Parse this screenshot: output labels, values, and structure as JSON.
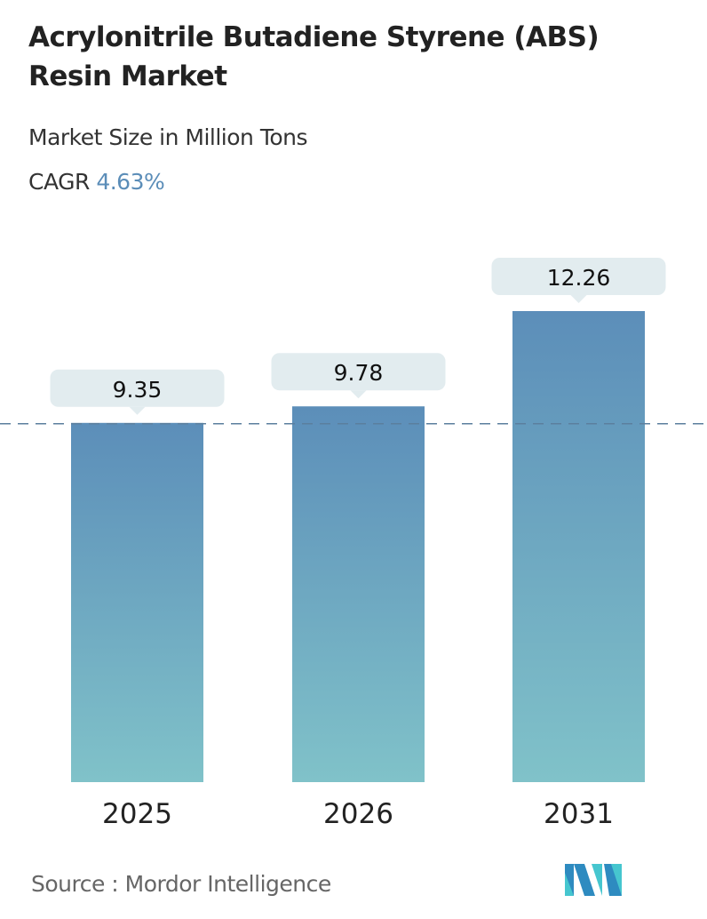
{
  "title": "Acrylonitrile Butadiene Styrene (ABS) Resin Market",
  "subtitle": "Market Size in Million Tons",
  "cagr_label": "CAGR",
  "cagr_value": "4.63%",
  "source": "Source :  Mordor Intelligence",
  "logo_text": "MI",
  "colors": {
    "bar_top": "#5c8eb9",
    "bar_bottom": "#80c2c9",
    "label_box": "#e2ecef",
    "dash": "#5b7f9e",
    "accent": "#5b8db8"
  },
  "chart_data": {
    "type": "bar",
    "categories": [
      "2025",
      "2026",
      "2031"
    ],
    "values": [
      9.35,
      9.78,
      12.26
    ],
    "value_labels": [
      "9.35",
      "9.78",
      "12.26"
    ],
    "ylim": [
      0,
      12.26
    ],
    "grid": false,
    "reference_line": "dashed line at 2025 value"
  }
}
